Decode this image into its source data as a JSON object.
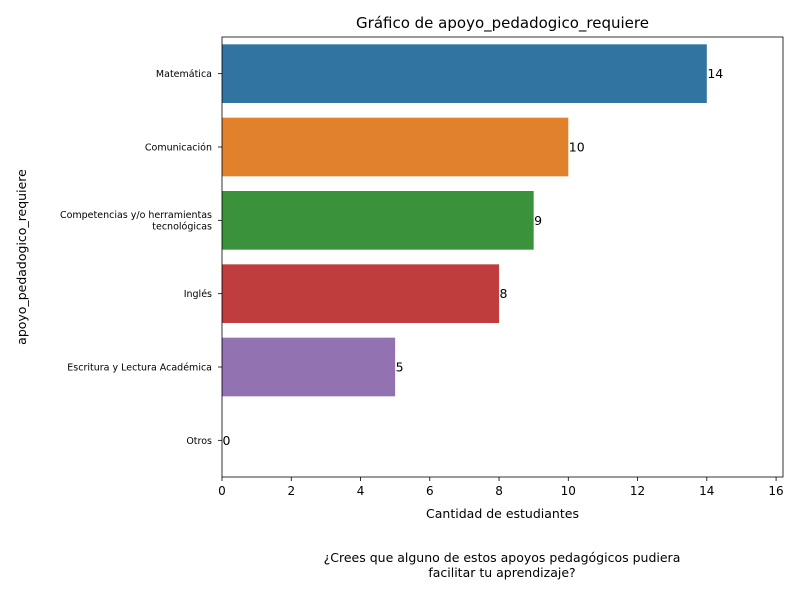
{
  "chart_data": {
    "type": "bar",
    "orientation": "horizontal",
    "title": "Gráfico de apoyo_pedadogico_requiere",
    "xlabel": "Cantidad de estudiantes",
    "ylabel": "apoyo_pedadogico_requiere",
    "categories": [
      [
        "Matemática"
      ],
      [
        "Comunicación"
      ],
      [
        "Competencias y/o herramientas",
        "tecnológicas"
      ],
      [
        "Inglés"
      ],
      [
        "Escritura y Lectura Académica"
      ],
      [
        "Otros"
      ]
    ],
    "values": [
      14,
      10,
      9,
      8,
      5,
      0
    ],
    "colors": [
      "#3274a1",
      "#e1812c",
      "#3a923a",
      "#c03d3e",
      "#9372b2",
      "#845b53"
    ],
    "xlim": [
      0,
      16.2
    ],
    "xticks": [
      0,
      2,
      4,
      6,
      8,
      10,
      12,
      14,
      16
    ],
    "grid": false,
    "caption": [
      "¿Crees que alguno de estos apoyos pedagógicos pudiera",
      "facilitar tu aprendizaje?"
    ]
  }
}
